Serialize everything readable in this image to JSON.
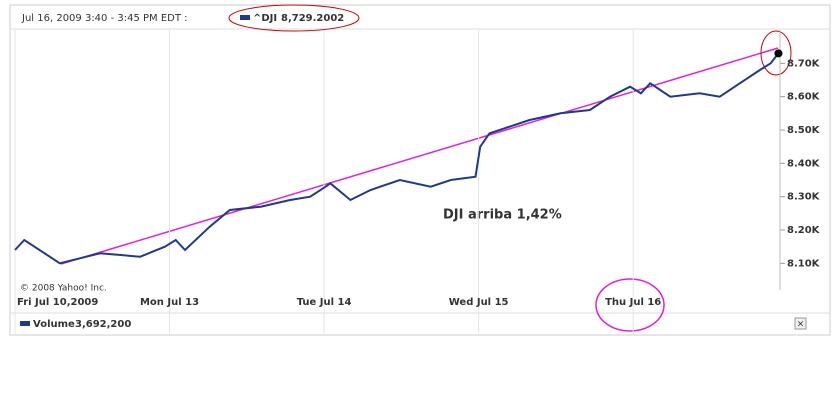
{
  "chart_data": {
    "type": "line",
    "header": "Jul 16, 2009 3:40 - 3:45 PM EDT :",
    "annotation": "DJI  arriba 1,42%",
    "copyright": "© 2008 Yahoo! Inc.",
    "xlim": [
      0,
      4.95
    ],
    "xticks": [
      {
        "value": 0,
        "label": "Fri Jul 10,2009"
      },
      {
        "value": 1,
        "label": "Mon Jul 13"
      },
      {
        "value": 2,
        "label": "Tue Jul 14"
      },
      {
        "value": 3,
        "label": "Wed Jul 15"
      },
      {
        "value": 4,
        "label": "Thu Jul 16"
      }
    ],
    "ylim": [
      8020,
      8800
    ],
    "yticks": [
      {
        "value": 8100,
        "label": "8.10K"
      },
      {
        "value": 8200,
        "label": "8.20K"
      },
      {
        "value": 8300,
        "label": "8.30K"
      },
      {
        "value": 8400,
        "label": "8.40K"
      },
      {
        "value": 8500,
        "label": "8.50K"
      },
      {
        "value": 8600,
        "label": "8.60K"
      },
      {
        "value": 8700,
        "label": "8.70K"
      }
    ],
    "grid": true,
    "series": [
      {
        "name": "^DJI",
        "color": "#1f3a8a",
        "last": {
          "value": 8729.2002,
          "label": "8,729.2002"
        },
        "x": [
          0,
          0.06,
          0.29,
          0.55,
          0.81,
          0.97,
          1.04,
          1.1,
          1.26,
          1.39,
          1.59,
          1.78,
          1.91,
          2.01,
          2.04,
          2.17,
          2.3,
          2.49,
          2.69,
          2.82,
          2.98,
          3.01,
          3.07,
          3.2,
          3.33,
          3.53,
          3.72,
          3.85,
          3.98,
          4.05,
          4.11,
          4.24,
          4.43,
          4.56,
          4.69,
          4.82,
          4.89,
          4.94
        ],
        "values": [
          8140,
          8170,
          8100,
          8130,
          8120,
          8150,
          8170,
          8140,
          8210,
          8260,
          8270,
          8290,
          8300,
          8330,
          8340,
          8290,
          8320,
          8350,
          8330,
          8350,
          8360,
          8450,
          8490,
          8510,
          8530,
          8550,
          8560,
          8600,
          8630,
          8610,
          8640,
          8600,
          8610,
          8600,
          8640,
          8680,
          8700,
          8730
        ]
      }
    ],
    "volume": {
      "name": "Volume",
      "value": 3692200,
      "label": "3,692,200"
    }
  }
}
